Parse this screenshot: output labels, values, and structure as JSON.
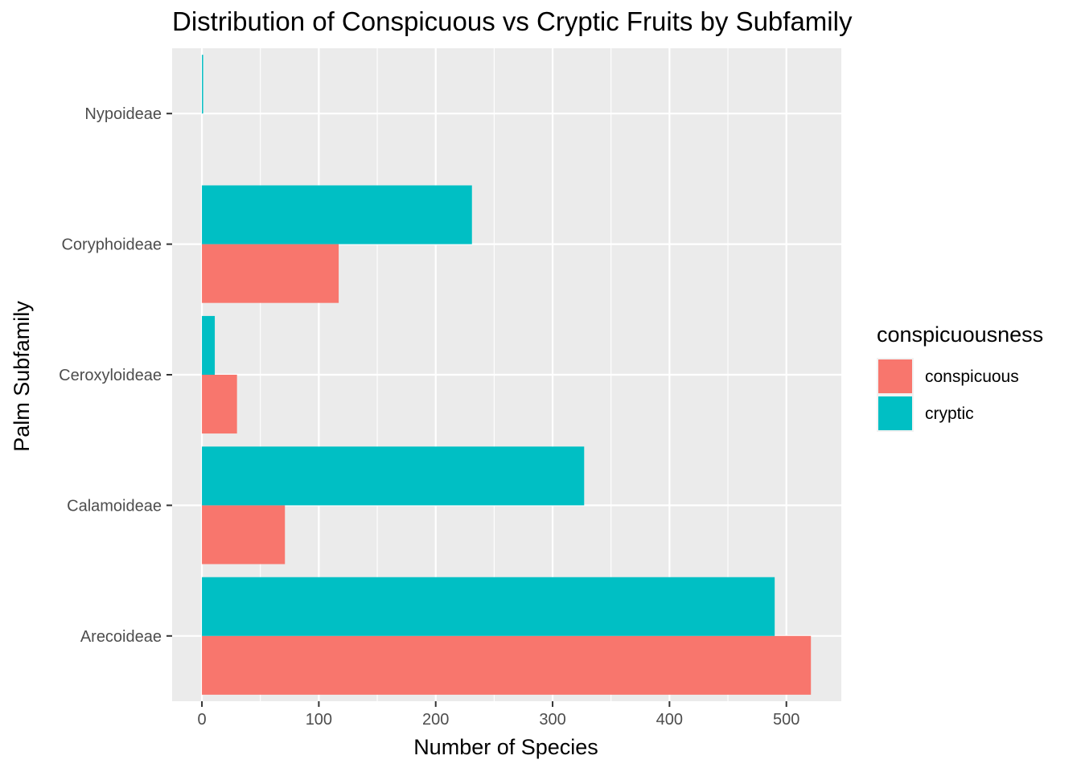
{
  "chart_data": {
    "type": "bar",
    "orientation": "horizontal",
    "title": "Distribution of Conspicuous vs Cryptic Fruits by Subfamily",
    "xlabel": "Number of Species",
    "ylabel": "Palm Subfamily",
    "categories": [
      "Arecoideae",
      "Calamoideae",
      "Ceroxyloideae",
      "Coryphoideae",
      "Nypoideae"
    ],
    "series": [
      {
        "name": "conspicuous",
        "color": "#F8766D",
        "values": [
          521,
          71,
          30,
          117,
          null
        ]
      },
      {
        "name": "cryptic",
        "color": "#00BFC4",
        "values": [
          490,
          327,
          11,
          231,
          1
        ]
      }
    ],
    "xlim": [
      -25.5,
      547
    ],
    "xticks": [
      0,
      100,
      200,
      300,
      400,
      500
    ],
    "grid": true,
    "legend": {
      "title": "conspicuousness",
      "position": "right"
    }
  }
}
